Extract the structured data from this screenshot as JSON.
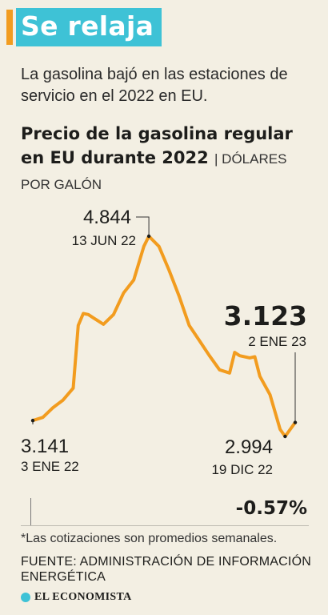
{
  "header": {
    "title": "Se relaja"
  },
  "subtitle": "La gasolina bajó en las estaciones de servicio en el 2022 en EU.",
  "chart_title": "Precio de la gasolina regular en EU durante 2022",
  "chart_units": "DÓLARES POR GALÓN",
  "chart_data": {
    "type": "line",
    "title": "Precio de la gasolina regular en EU durante 2022",
    "ylabel": "DÓLARES POR GALÓN",
    "xlabel": "",
    "ylim": [
      2.9,
      4.9
    ],
    "series": [
      {
        "x": [
          "2022-01-03",
          "2022-01-17",
          "2022-01-31",
          "2022-02-14",
          "2022-02-28",
          "2022-03-07",
          "2022-03-14",
          "2022-03-21",
          "2022-03-28",
          "2022-04-11",
          "2022-04-25",
          "2022-05-09",
          "2022-05-23",
          "2022-06-06",
          "2022-06-13",
          "2022-06-27",
          "2022-07-11",
          "2022-07-25",
          "2022-08-08",
          "2022-08-22",
          "2022-09-05",
          "2022-09-19",
          "2022-10-03",
          "2022-10-10",
          "2022-10-17",
          "2022-10-31",
          "2022-11-07",
          "2022-11-14",
          "2022-11-28",
          "2022-12-12",
          "2022-12-19",
          "2023-01-02"
        ],
        "values": [
          3.141,
          3.17,
          3.26,
          3.33,
          3.44,
          4.02,
          4.13,
          4.12,
          4.09,
          4.03,
          4.12,
          4.32,
          4.44,
          4.75,
          4.844,
          4.75,
          4.53,
          4.29,
          4.02,
          3.88,
          3.74,
          3.61,
          3.58,
          3.77,
          3.74,
          3.72,
          3.73,
          3.55,
          3.38,
          3.06,
          2.994,
          3.123
        ]
      }
    ],
    "annotations": [
      {
        "value": "4.844",
        "date": "13 JUN 22"
      },
      {
        "value": "3.123",
        "date": "2 ENE 23"
      },
      {
        "value": "3.141",
        "date": "3 ENE 22"
      },
      {
        "value": "2.994",
        "date": "19 DIC 22"
      }
    ],
    "colors": {
      "line": "#f29c1f"
    }
  },
  "change": "-0.57%",
  "footnote": "*Las cotizaciones son promedios semanales.",
  "source": "FUENTE: ADMINISTRACIÓN DE INFORMACIÓN ENERGÉTICA",
  "brand": "EL ECONOMISTA"
}
